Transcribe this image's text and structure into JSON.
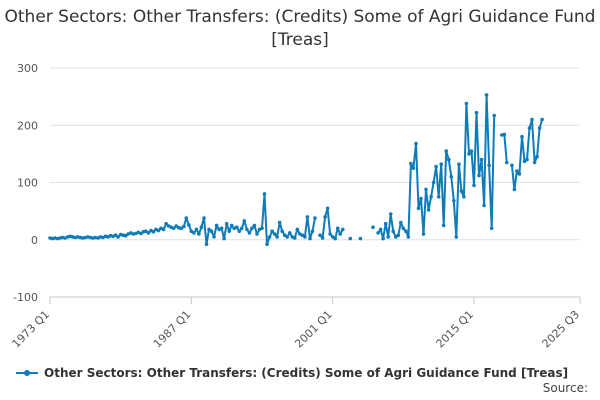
{
  "chart_data": {
    "type": "line",
    "title": "Other Sectors: Other Transfers: (Credits) Some of Agri Guidance Fund [Treas]",
    "xlabel": "",
    "ylabel": "",
    "x_tick_labels": [
      "1973 Q1",
      "1987 Q1",
      "2001 Q1",
      "2015 Q1",
      "2025 Q3"
    ],
    "x_ticks_year": [
      1973.0,
      1987.0,
      2001.0,
      2015.0,
      2025.5
    ],
    "xlim": [
      1973.0,
      2025.5
    ],
    "y_ticks": [
      -100,
      0,
      100,
      200,
      300
    ],
    "ylim": [
      -100,
      300
    ],
    "grid": "horizontal",
    "legend_position": "bottom-left",
    "series": [
      {
        "name": "Other Sectors: Other Transfers: (Credits) Some of Agri Guidance Fund [Treas]",
        "color": "#0f7bb8",
        "points": [
          [
            1973.0,
            3
          ],
          [
            1973.25,
            2
          ],
          [
            1973.5,
            3
          ],
          [
            1973.75,
            2
          ],
          [
            1974.0,
            3
          ],
          [
            1974.25,
            4
          ],
          [
            1974.5,
            3
          ],
          [
            1974.75,
            5
          ],
          [
            1975.0,
            6
          ],
          [
            1975.25,
            5
          ],
          [
            1975.5,
            4
          ],
          [
            1975.75,
            5
          ],
          [
            1976.0,
            4
          ],
          [
            1976.25,
            3
          ],
          [
            1976.5,
            4
          ],
          [
            1976.75,
            5
          ],
          [
            1977.0,
            4
          ],
          [
            1977.25,
            3
          ],
          [
            1977.5,
            4
          ],
          [
            1977.75,
            3
          ],
          [
            1978.0,
            5
          ],
          [
            1978.25,
            4
          ],
          [
            1978.5,
            6
          ],
          [
            1978.75,
            5
          ],
          [
            1979.0,
            7
          ],
          [
            1979.25,
            6
          ],
          [
            1979.5,
            8
          ],
          [
            1979.75,
            5
          ],
          [
            1980.0,
            9
          ],
          [
            1980.25,
            8
          ],
          [
            1980.5,
            7
          ],
          [
            1980.75,
            10
          ],
          [
            1981.0,
            12
          ],
          [
            1981.25,
            10
          ],
          [
            1981.5,
            11
          ],
          [
            1981.75,
            13
          ],
          [
            1982.0,
            11
          ],
          [
            1982.25,
            14
          ],
          [
            1982.5,
            15
          ],
          [
            1982.75,
            12
          ],
          [
            1983.0,
            16
          ],
          [
            1983.25,
            14
          ],
          [
            1983.5,
            18
          ],
          [
            1983.75,
            16
          ],
          [
            1984.0,
            20
          ],
          [
            1984.25,
            18
          ],
          [
            1984.5,
            28
          ],
          [
            1984.75,
            24
          ],
          [
            1985.0,
            22
          ],
          [
            1985.25,
            20
          ],
          [
            1985.5,
            24
          ],
          [
            1985.75,
            21
          ],
          [
            1986.0,
            20
          ],
          [
            1986.25,
            23
          ],
          [
            1986.5,
            38
          ],
          [
            1986.75,
            26
          ],
          [
            1987.0,
            15
          ],
          [
            1987.25,
            12
          ],
          [
            1987.5,
            18
          ],
          [
            1987.75,
            10
          ],
          [
            1988.0,
            22
          ],
          [
            1988.25,
            38
          ],
          [
            1988.5,
            -8
          ],
          [
            1988.75,
            18
          ],
          [
            1989.0,
            15
          ],
          [
            1989.25,
            5
          ],
          [
            1989.5,
            25
          ],
          [
            1989.75,
            18
          ],
          [
            1990.0,
            20
          ],
          [
            1990.25,
            2
          ],
          [
            1990.5,
            28
          ],
          [
            1990.75,
            15
          ],
          [
            1991.0,
            25
          ],
          [
            1991.25,
            20
          ],
          [
            1991.5,
            22
          ],
          [
            1991.75,
            15
          ],
          [
            1992.0,
            20
          ],
          [
            1992.25,
            33
          ],
          [
            1992.5,
            18
          ],
          [
            1992.75,
            12
          ],
          [
            1993.0,
            20
          ],
          [
            1993.25,
            25
          ],
          [
            1993.5,
            10
          ],
          [
            1993.75,
            18
          ],
          [
            1994.0,
            20
          ],
          [
            1994.25,
            80
          ],
          [
            1994.5,
            -8
          ],
          [
            1994.75,
            5
          ],
          [
            1995.0,
            15
          ],
          [
            1995.25,
            10
          ],
          [
            1995.5,
            5
          ],
          [
            1995.75,
            30
          ],
          [
            1996.0,
            15
          ],
          [
            1996.25,
            8
          ],
          [
            1996.5,
            5
          ],
          [
            1996.75,
            12
          ],
          [
            1997.0,
            5
          ],
          [
            1997.25,
            3
          ],
          [
            1997.5,
            18
          ],
          [
            1997.75,
            10
          ],
          [
            1998.0,
            8
          ],
          [
            1998.25,
            5
          ],
          [
            1998.5,
            40
          ],
          [
            1998.75,
            2
          ],
          [
            1999.0,
            15
          ],
          [
            1999.25,
            38
          ],
          [
            1999.5,
            null
          ],
          [
            1999.75,
            8
          ],
          [
            2000.0,
            3
          ],
          [
            2000.25,
            40
          ],
          [
            2000.5,
            55
          ],
          [
            2000.75,
            10
          ],
          [
            2001.0,
            5
          ],
          [
            2001.25,
            2
          ],
          [
            2001.5,
            20
          ],
          [
            2001.75,
            10
          ],
          [
            2002.0,
            18
          ],
          [
            2002.25,
            null
          ],
          [
            2002.5,
            null
          ],
          [
            2002.75,
            2
          ],
          [
            2003.0,
            null
          ],
          [
            2003.25,
            null
          ],
          [
            2003.5,
            null
          ],
          [
            2003.75,
            2
          ],
          [
            2004.0,
            null
          ],
          [
            2004.25,
            null
          ],
          [
            2004.5,
            null
          ],
          [
            2004.75,
            null
          ],
          [
            2005.0,
            22
          ],
          [
            2005.25,
            null
          ],
          [
            2005.5,
            12
          ],
          [
            2005.75,
            18
          ],
          [
            2006.0,
            2
          ],
          [
            2006.25,
            28
          ],
          [
            2006.5,
            5
          ],
          [
            2006.75,
            45
          ],
          [
            2007.0,
            15
          ],
          [
            2007.25,
            5
          ],
          [
            2007.5,
            8
          ],
          [
            2007.75,
            30
          ],
          [
            2008.0,
            20
          ],
          [
            2008.25,
            15
          ],
          [
            2008.5,
            5
          ],
          [
            2008.75,
            133
          ],
          [
            2009.0,
            125
          ],
          [
            2009.25,
            168
          ],
          [
            2009.5,
            55
          ],
          [
            2009.75,
            72
          ],
          [
            2010.0,
            10
          ],
          [
            2010.25,
            88
          ],
          [
            2010.5,
            52
          ],
          [
            2010.75,
            75
          ],
          [
            2011.0,
            100
          ],
          [
            2011.25,
            128
          ],
          [
            2011.5,
            75
          ],
          [
            2011.75,
            132
          ],
          [
            2012.0,
            25
          ],
          [
            2012.25,
            155
          ],
          [
            2012.5,
            140
          ],
          [
            2012.75,
            110
          ],
          [
            2013.0,
            68
          ],
          [
            2013.25,
            5
          ],
          [
            2013.5,
            132
          ],
          [
            2013.75,
            85
          ],
          [
            2014.0,
            75
          ],
          [
            2014.25,
            238
          ],
          [
            2014.5,
            150
          ],
          [
            2014.75,
            155
          ],
          [
            2015.0,
            95
          ],
          [
            2015.25,
            222
          ],
          [
            2015.5,
            112
          ],
          [
            2015.75,
            140
          ],
          [
            2016.0,
            60
          ],
          [
            2016.25,
            253
          ],
          [
            2016.5,
            130
          ],
          [
            2016.75,
            20
          ],
          [
            2017.0,
            217
          ],
          [
            2017.25,
            null
          ],
          [
            2017.5,
            null
          ],
          [
            2017.75,
            183
          ],
          [
            2018.0,
            184
          ],
          [
            2018.25,
            135
          ],
          [
            2018.5,
            null
          ],
          [
            2018.75,
            130
          ],
          [
            2019.0,
            88
          ],
          [
            2019.25,
            120
          ],
          [
            2019.5,
            115
          ],
          [
            2019.75,
            180
          ],
          [
            2020.0,
            137
          ],
          [
            2020.25,
            140
          ],
          [
            2020.5,
            195
          ],
          [
            2020.75,
            210
          ],
          [
            2021.0,
            135
          ],
          [
            2021.25,
            145
          ],
          [
            2021.5,
            195
          ],
          [
            2021.75,
            210
          ]
        ]
      }
    ]
  },
  "legend": {
    "label": "Other Sectors: Other Transfers: (Credits) Some of Agri Guidance Fund [Treas]"
  },
  "source": {
    "label": "Source:"
  }
}
